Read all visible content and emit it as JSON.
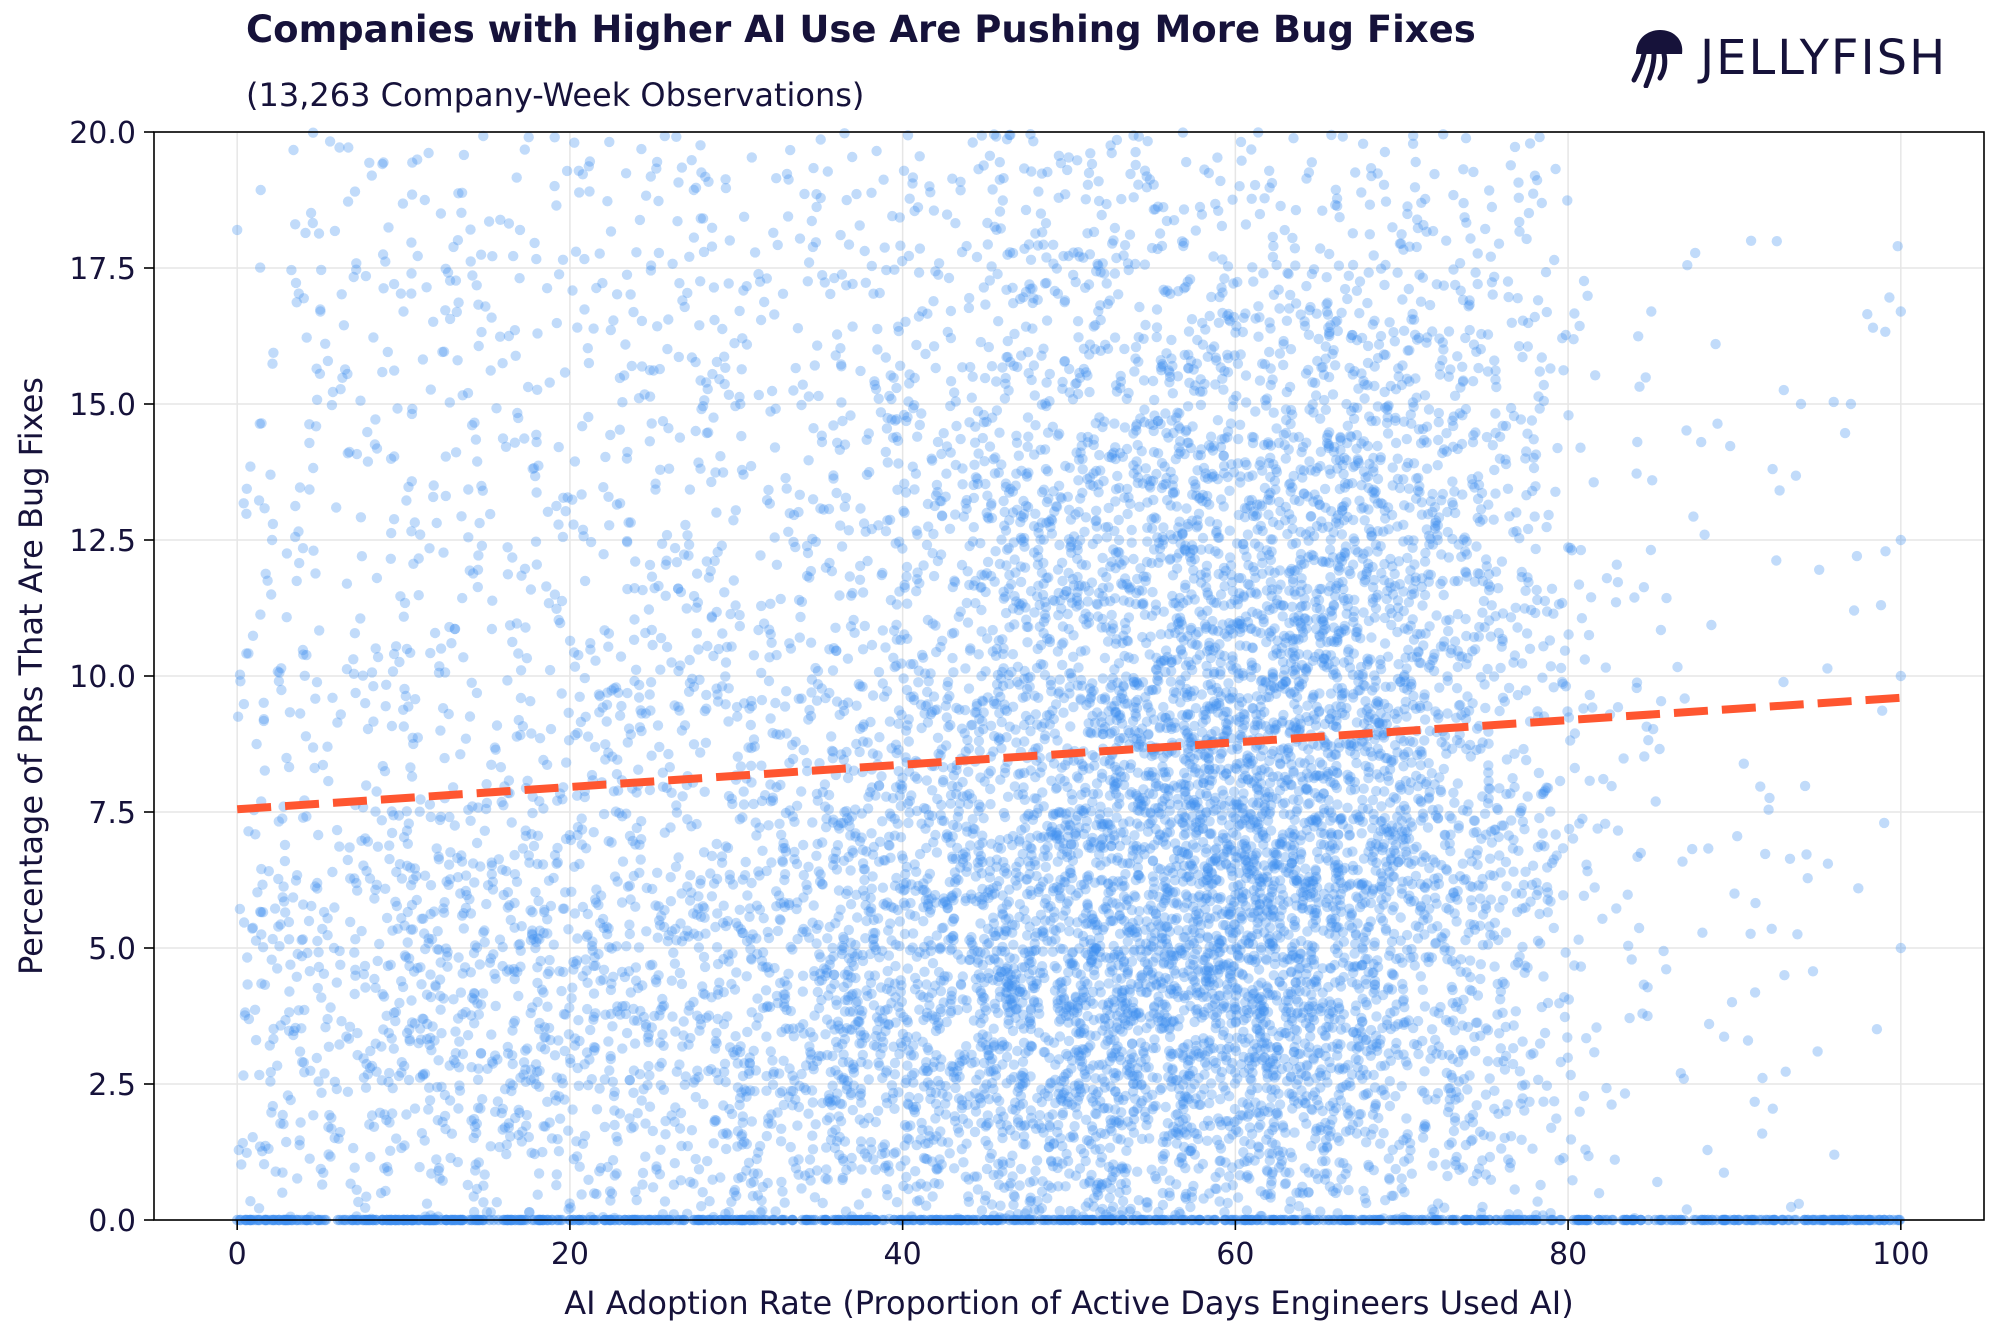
{
  "title": "Companies with Higher AI Use Are Pushing More Bug Fixes",
  "subtitle": "(13,263 Company-Week Observations)",
  "brand": {
    "name": "JELLYFISH",
    "icon": "jellyfish-logo-icon"
  },
  "colors": {
    "points": "#3d8ef0",
    "trend": "#ff5630",
    "text": "#16123a",
    "grid": "#e6e6e6"
  },
  "chart_data": {
    "type": "scatter",
    "title": "Companies with Higher AI Use Are Pushing More Bug Fixes",
    "subtitle": "(13,263 Company-Week Observations)",
    "xlabel": "AI Adoption Rate (Proportion of Active Days Engineers Used AI)",
    "ylabel": "Percentage of PRs That Are Bug Fixes",
    "xlim": [
      -5,
      105
    ],
    "ylim": [
      0,
      20
    ],
    "x_ticks": [
      "0",
      "20",
      "40",
      "60",
      "80",
      "100"
    ],
    "y_ticks": [
      "0.0",
      "2.5",
      "5.0",
      "7.5",
      "10.0",
      "12.5",
      "15.0",
      "17.5",
      "20.0"
    ],
    "grid": true,
    "n_observations": 13263,
    "trend_line": {
      "style": "dashed",
      "x": [
        0,
        100
      ],
      "y": [
        7.55,
        9.6
      ]
    },
    "density_clusters": [
      {
        "x_center": 60,
        "y_center": 5.5,
        "weight": "highest"
      },
      {
        "x_center": 55,
        "y_center": 12.0,
        "weight": "high"
      },
      {
        "x_center": 67,
        "y_center": 11.0,
        "weight": "high"
      },
      {
        "x_center": 45,
        "y_center": 3.5,
        "weight": "medium"
      },
      {
        "x_center": 10,
        "y_center": 4.0,
        "weight": "medium"
      }
    ],
    "zero_line_points": {
      "x_range": [
        0,
        100
      ],
      "y": 0.0
    },
    "sample_points": [
      {
        "x": 0,
        "y": 18.2
      },
      {
        "x": 2,
        "y": 13.7
      },
      {
        "x": 5,
        "y": 16.7
      },
      {
        "x": 10,
        "y": 16.7
      },
      {
        "x": 17,
        "y": 18.2
      },
      {
        "x": 18,
        "y": 14.3
      },
      {
        "x": 85,
        "y": 16.7
      },
      {
        "x": 88,
        "y": 14.3
      },
      {
        "x": 91,
        "y": 18.0
      },
      {
        "x": 94,
        "y": 15.0
      },
      {
        "x": 97,
        "y": 15.0
      },
      {
        "x": 99,
        "y": 7.3
      },
      {
        "x": 100,
        "y": 16.7
      },
      {
        "x": 100,
        "y": 12.5
      },
      {
        "x": 100,
        "y": 10.0
      },
      {
        "x": 100,
        "y": 5.0
      },
      {
        "x": 96,
        "y": 1.2
      },
      {
        "x": 95,
        "y": 3.1
      },
      {
        "x": 93,
        "y": 4.5
      },
      {
        "x": 90,
        "y": 6.0
      }
    ]
  }
}
